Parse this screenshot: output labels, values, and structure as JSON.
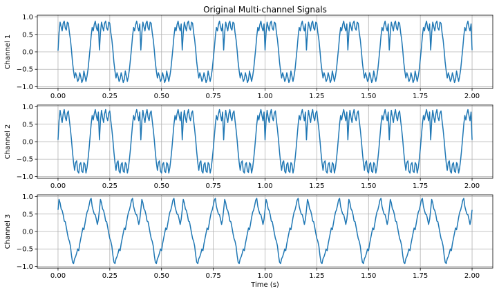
{
  "figure": {
    "title": "Original Multi-channel Signals",
    "xlabel": "Time (s)"
  },
  "chart_data": [
    {
      "type": "line",
      "ylabel": "Channel 1",
      "xlim": [
        -0.1,
        2.1
      ],
      "ylim": [
        -1.05,
        1.05
      ],
      "xticks": [
        0.0,
        0.25,
        0.5,
        0.75,
        1.0,
        1.25,
        1.5,
        1.75,
        2.0
      ],
      "xtick_labels": [
        "0.00",
        "0.25",
        "0.50",
        "0.75",
        "1.00",
        "1.25",
        "1.50",
        "1.75",
        "2.00"
      ],
      "yticks": [
        -1.0,
        -0.5,
        0.0,
        0.5,
        1.0
      ],
      "ytick_labels": [
        "−1.0",
        "−0.5",
        "0.0",
        "0.5",
        "1.0"
      ],
      "grid": true,
      "series": [
        {
          "color": "#1f77b4",
          "description": "square-like wave, 5 Hz, amplitude ~0.9 with high-frequency ripple",
          "x": [
            0.0,
            0.005,
            0.01,
            0.015,
            0.02,
            0.025,
            0.03,
            0.035,
            0.04,
            0.045,
            0.05,
            0.055,
            0.06,
            0.065,
            0.07,
            0.075,
            0.08,
            0.085,
            0.09,
            0.095,
            0.1,
            0.105,
            0.11,
            0.115,
            0.12,
            0.125,
            0.13,
            0.135,
            0.14,
            0.145,
            0.15,
            0.155,
            0.16,
            0.165,
            0.17,
            0.175,
            0.18,
            0.185,
            0.19,
            0.195,
            0.2
          ],
          "y_period": [
            0.03,
            0.55,
            0.85,
            0.72,
            0.6,
            0.82,
            0.88,
            0.68,
            0.62,
            0.85,
            0.82,
            0.55,
            0.35,
            0.05,
            -0.3,
            -0.55,
            -0.75,
            -0.6,
            -0.7,
            -0.85,
            -0.78,
            -0.6,
            -0.72,
            -0.88,
            -0.8,
            -0.55,
            -0.7,
            -0.85,
            -0.7,
            -0.5,
            -0.2,
            0.1,
            0.45,
            0.7,
            0.6,
            0.78,
            0.88,
            0.7,
            0.6,
            0.8,
            0.05
          ],
          "periods": 10
        }
      ]
    },
    {
      "type": "line",
      "ylabel": "Channel 2",
      "xlim": [
        -0.1,
        2.1
      ],
      "ylim": [
        -1.05,
        1.05
      ],
      "xticks": [
        0.0,
        0.25,
        0.5,
        0.75,
        1.0,
        1.25,
        1.5,
        1.75,
        2.0
      ],
      "xtick_labels": [
        "0.00",
        "0.25",
        "0.50",
        "0.75",
        "1.00",
        "1.25",
        "1.50",
        "1.75",
        "2.00"
      ],
      "yticks": [
        -1.0,
        -0.5,
        0.0,
        0.5,
        1.0
      ],
      "ytick_labels": [
        "−1.0",
        "−0.5",
        "0.0",
        "0.5",
        "1.0"
      ],
      "grid": true,
      "series": [
        {
          "color": "#1f77b4",
          "description": "square-like wave, 5 Hz, amplitude ~0.9 with high-frequency ripple",
          "x": [
            0.0,
            0.005,
            0.01,
            0.015,
            0.02,
            0.025,
            0.03,
            0.035,
            0.04,
            0.045,
            0.05,
            0.055,
            0.06,
            0.065,
            0.07,
            0.075,
            0.08,
            0.085,
            0.09,
            0.095,
            0.1,
            0.105,
            0.11,
            0.115,
            0.12,
            0.125,
            0.13,
            0.135,
            0.14,
            0.145,
            0.15,
            0.155,
            0.16,
            0.165,
            0.17,
            0.175,
            0.18,
            0.185,
            0.19,
            0.195,
            0.2
          ],
          "y_period": [
            0.05,
            0.6,
            0.9,
            0.7,
            0.55,
            0.8,
            0.92,
            0.7,
            0.6,
            0.82,
            0.88,
            0.6,
            0.35,
            0.05,
            -0.3,
            -0.6,
            -0.82,
            -0.6,
            -0.55,
            -0.85,
            -0.9,
            -0.65,
            -0.6,
            -0.85,
            -0.88,
            -0.6,
            -0.65,
            -0.9,
            -0.75,
            -0.5,
            -0.2,
            0.15,
            0.5,
            0.75,
            0.62,
            0.8,
            0.92,
            0.75,
            0.6,
            0.85,
            0.05
          ],
          "periods": 10
        }
      ]
    },
    {
      "type": "line",
      "ylabel": "Channel 3",
      "xlim": [
        -0.1,
        2.1
      ],
      "ylim": [
        -1.05,
        1.05
      ],
      "xticks": [
        0.0,
        0.25,
        0.5,
        0.75,
        1.0,
        1.25,
        1.5,
        1.75,
        2.0
      ],
      "xtick_labels": [
        "0.00",
        "0.25",
        "0.50",
        "0.75",
        "1.00",
        "1.25",
        "1.50",
        "1.75",
        "2.00"
      ],
      "yticks": [
        -1.0,
        -0.5,
        0.0,
        0.5,
        1.0
      ],
      "ytick_labels": [
        "−1.0",
        "−0.5",
        "0.0",
        "0.5",
        "1.0"
      ],
      "grid": true,
      "series": [
        {
          "color": "#1f77b4",
          "description": "sawtooth-like wave, 5 Hz, amplitude ~0.95 with ripple",
          "x": [
            0.0,
            0.005,
            0.01,
            0.015,
            0.02,
            0.025,
            0.03,
            0.035,
            0.04,
            0.045,
            0.05,
            0.055,
            0.06,
            0.065,
            0.07,
            0.075,
            0.08,
            0.085,
            0.09,
            0.095,
            0.1,
            0.105,
            0.11,
            0.115,
            0.12,
            0.125,
            0.13,
            0.135,
            0.14,
            0.145,
            0.15,
            0.155,
            0.16,
            0.165,
            0.17,
            0.175,
            0.18,
            0.185,
            0.19,
            0.195,
            0.2
          ],
          "y_period": [
            0.62,
            0.92,
            0.82,
            0.65,
            0.6,
            0.48,
            0.3,
            0.28,
            0.12,
            -0.05,
            -0.2,
            -0.28,
            -0.42,
            -0.68,
            -0.88,
            -0.92,
            -0.78,
            -0.72,
            -0.62,
            -0.5,
            -0.55,
            -0.35,
            -0.2,
            -0.05,
            0.1,
            0.05,
            0.22,
            0.4,
            0.55,
            0.62,
            0.75,
            0.9,
            0.95,
            0.72,
            0.6,
            0.5,
            0.48,
            0.35,
            0.2,
            0.35,
            0.62
          ],
          "periods": 10
        }
      ]
    }
  ]
}
